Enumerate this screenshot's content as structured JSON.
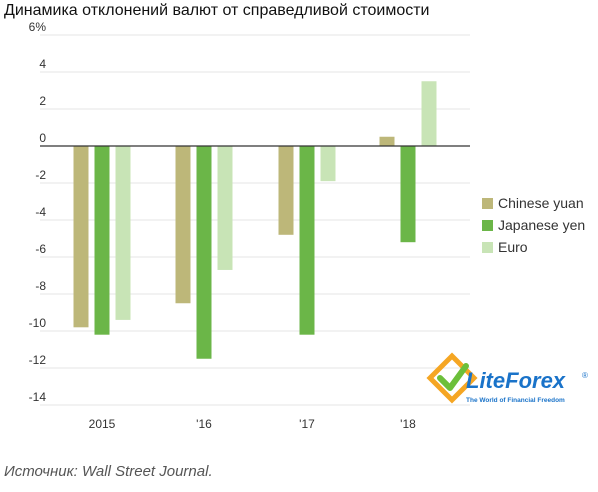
{
  "title": "Динамика отклонений валют от справедливой стоимости",
  "source": "Источник: Wall Street Journal.",
  "logo": {
    "name": "LiteForex",
    "name_part1": "Lite",
    "name_part2": "Forex",
    "registered": "®",
    "tagline": "The World of Financial Freedom"
  },
  "colors": {
    "chinese_yuan": "#bdb779",
    "japanese_yen": "#6bb648",
    "euro": "#c8e4b6",
    "zero_line": "#333333",
    "grid": "#e6e6e6",
    "logo_blue": "#1a73c9",
    "logo_green": "#6cbf3a",
    "logo_orange": "#f5a623"
  },
  "chart_data": {
    "type": "bar",
    "categories": [
      "2015",
      "'16",
      "'17",
      "'18"
    ],
    "series": [
      {
        "name": "Chinese yuan",
        "values": [
          -9.8,
          -8.5,
          -4.8,
          0.5
        ]
      },
      {
        "name": "Japanese yen",
        "values": [
          -10.2,
          -11.5,
          -10.2,
          -5.2
        ]
      },
      {
        "name": "Euro",
        "values": [
          -9.4,
          -6.7,
          -1.9,
          3.5
        ]
      }
    ],
    "yticks": [
      "6%",
      "4",
      "2",
      "0",
      "-2",
      "-4",
      "-6",
      "-8",
      "-10",
      "-12",
      "-14"
    ],
    "ylim": [
      -14,
      6
    ],
    "legend_position": "right",
    "grid": true
  }
}
